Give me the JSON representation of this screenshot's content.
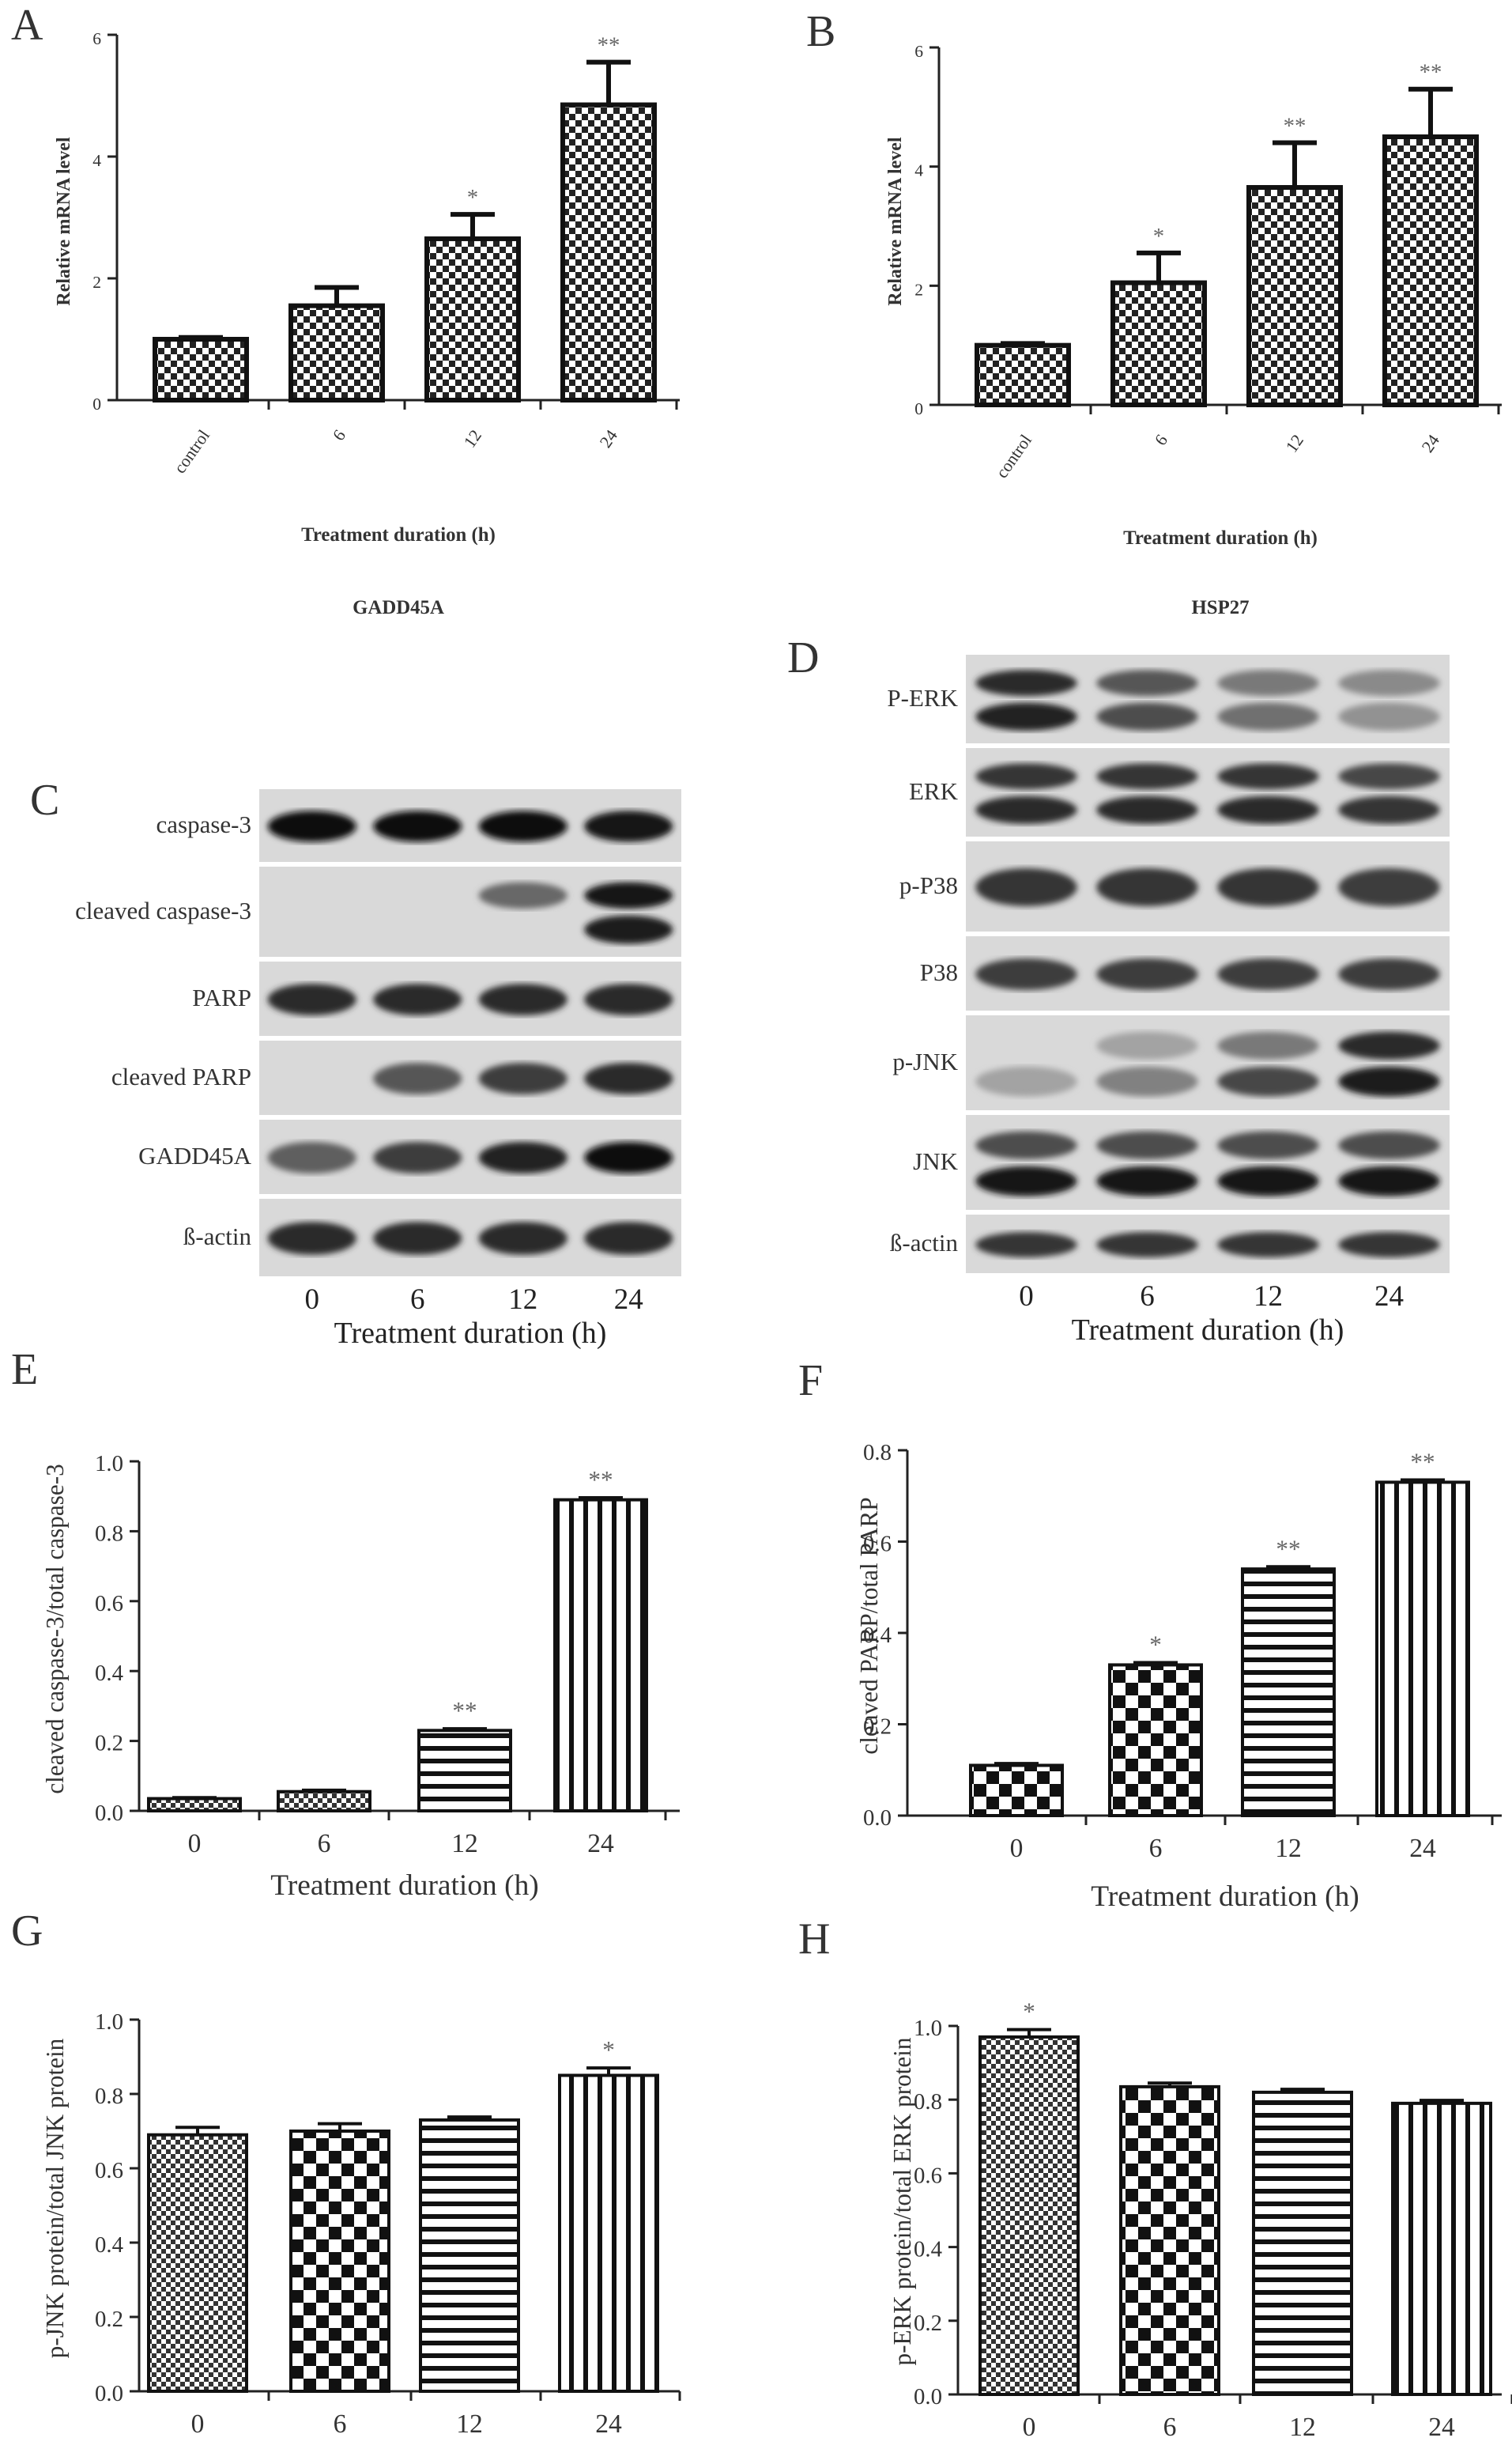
{
  "chart_data": [
    {
      "panel": "A",
      "type": "bar",
      "title": "GADD45A",
      "xlabel": "Treatment duration (h)",
      "ylabel": "Relative mRNA level",
      "categories": [
        "control",
        "6",
        "12",
        "24"
      ],
      "values": [
        1.0,
        1.55,
        2.65,
        4.85
      ],
      "errors": [
        0.03,
        0.3,
        0.4,
        0.7
      ],
      "significance": [
        "",
        "",
        "*",
        "**"
      ],
      "ylim": [
        0,
        6
      ],
      "yticks": [
        0,
        2,
        4,
        6
      ],
      "rotated_xticks": true
    },
    {
      "panel": "B",
      "type": "bar",
      "title": "HSP27",
      "xlabel": "Treatment duration (h)",
      "ylabel": "Relative mRNA level",
      "categories": [
        "control",
        "6",
        "12",
        "24"
      ],
      "values": [
        1.0,
        2.05,
        3.65,
        4.5
      ],
      "errors": [
        0.03,
        0.5,
        0.75,
        0.8
      ],
      "significance": [
        "",
        "*",
        "**",
        "**"
      ],
      "ylim": [
        0,
        6
      ],
      "yticks": [
        0,
        2,
        4,
        6
      ],
      "rotated_xticks": true
    },
    {
      "panel": "E",
      "type": "bar",
      "xlabel": "Treatment duration (h)",
      "ylabel": "cleaved caspase-3/total caspase-3",
      "categories": [
        "0",
        "6",
        "12",
        "24"
      ],
      "values": [
        0.035,
        0.055,
        0.23,
        0.89
      ],
      "errors": [
        0.003,
        0.004,
        0.005,
        0.006
      ],
      "significance": [
        "",
        "",
        "**",
        "**"
      ],
      "ylim": [
        0,
        1.0
      ],
      "yticks": [
        0.0,
        0.2,
        0.4,
        0.6,
        0.8,
        1.0
      ]
    },
    {
      "panel": "F",
      "type": "bar",
      "xlabel": "Treatment duration (h)",
      "ylabel": "cleaved PARP/total PARP",
      "categories": [
        "0",
        "6",
        "12",
        "24"
      ],
      "values": [
        0.11,
        0.33,
        0.54,
        0.73
      ],
      "errors": [
        0.004,
        0.005,
        0.005,
        0.005
      ],
      "significance": [
        "",
        "*",
        "**",
        "**"
      ],
      "ylim": [
        0,
        0.8
      ],
      "yticks": [
        0.0,
        0.2,
        0.4,
        0.6,
        0.8
      ]
    },
    {
      "panel": "G",
      "type": "bar",
      "xlabel": "Treatment duration (h)",
      "ylabel": "p-JNK protein/total JNK protein",
      "categories": [
        "0",
        "6",
        "12",
        "24"
      ],
      "values": [
        0.69,
        0.7,
        0.73,
        0.85
      ],
      "errors": [
        0.02,
        0.02,
        0.008,
        0.02
      ],
      "significance": [
        "",
        "",
        "",
        "*"
      ],
      "ylim": [
        0,
        1.0
      ],
      "yticks": [
        0.0,
        0.2,
        0.4,
        0.6,
        0.8,
        1.0
      ]
    },
    {
      "panel": "H",
      "type": "bar",
      "xlabel": "Treatment duration (h)",
      "ylabel": "p-ERK protein/total ERK protein",
      "categories": [
        "0",
        "6",
        "12",
        "24"
      ],
      "values": [
        0.97,
        0.835,
        0.82,
        0.79
      ],
      "errors": [
        0.02,
        0.01,
        0.008,
        0.008
      ],
      "significance": [
        "*",
        "",
        "",
        ""
      ],
      "ylim": [
        0,
        1.0
      ],
      "yticks": [
        0.0,
        0.2,
        0.4,
        0.6,
        0.8,
        1.0
      ]
    }
  ],
  "blots": {
    "C": {
      "rows": [
        {
          "label": "caspase-3",
          "bands": [
            1,
            1,
            1,
            0.95
          ]
        },
        {
          "label": "cleaved caspase-3",
          "bands": [
            0,
            0,
            0.45,
            0.95
          ],
          "lower": [
            0,
            0,
            0,
            0.9
          ]
        },
        {
          "label": "PARP",
          "bands": [
            0.8,
            0.8,
            0.8,
            0.8
          ]
        },
        {
          "label": "cleaved PARP",
          "bands": [
            0,
            0.55,
            0.7,
            0.8
          ]
        },
        {
          "label": "GADD45A",
          "bands": [
            0.5,
            0.7,
            0.85,
            1
          ]
        },
        {
          "label": "ß-actin",
          "bands": [
            0.8,
            0.8,
            0.8,
            0.8
          ]
        }
      ],
      "lanes": [
        "0",
        "6",
        "12",
        "24"
      ],
      "xlabel": "Treatment duration (h)"
    },
    "D": {
      "rows": [
        {
          "label": "P-ERK",
          "bands": [
            0.8,
            0.55,
            0.35,
            0.25
          ],
          "lower": [
            0.85,
            0.6,
            0.4,
            0.2
          ]
        },
        {
          "label": "ERK",
          "bands": [
            0.75,
            0.75,
            0.75,
            0.65
          ],
          "lower": [
            0.8,
            0.8,
            0.8,
            0.75
          ]
        },
        {
          "label": "p-P38",
          "bands": [
            0.75,
            0.75,
            0.75,
            0.7
          ]
        },
        {
          "label": "P38",
          "bands": [
            0.7,
            0.7,
            0.7,
            0.7
          ]
        },
        {
          "label": "p-JNK",
          "bands": [
            0,
            0.1,
            0.35,
            0.8
          ],
          "lower": [
            0.1,
            0.3,
            0.65,
            0.9
          ]
        },
        {
          "label": "JNK",
          "bands": [
            0.6,
            0.6,
            0.6,
            0.6
          ],
          "lower": [
            0.95,
            0.95,
            0.95,
            0.95
          ]
        },
        {
          "label": "ß-actin",
          "bands": [
            0.75,
            0.75,
            0.75,
            0.75
          ]
        }
      ],
      "lanes": [
        "0",
        "6",
        "12",
        "24"
      ],
      "xlabel": "Treatment duration (h)"
    }
  },
  "panel_letters": [
    "A",
    "B",
    "C",
    "D",
    "E",
    "F",
    "G",
    "H"
  ]
}
